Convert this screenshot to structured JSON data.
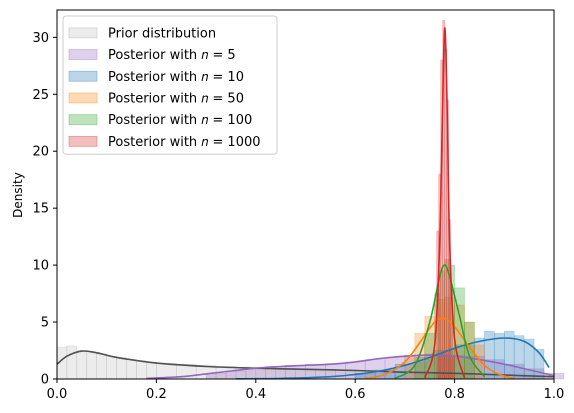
{
  "chart_data": {
    "type": "area",
    "title": "",
    "xlabel": "",
    "ylabel": "Density",
    "xlim": [
      0,
      1
    ],
    "ylim": [
      0,
      32.4
    ],
    "xticks": [
      "0.0",
      "0.2",
      "0.4",
      "0.6",
      "0.8",
      "1.0"
    ],
    "yticks": [
      "0",
      "5",
      "10",
      "15",
      "20",
      "25",
      "30"
    ],
    "grid": false,
    "legend_position": "top-left",
    "series": [
      {
        "name": "Prior distribution",
        "legend_text": "Prior distribution",
        "color": "#c8c8c8",
        "line_color": "#505050",
        "kde": [
          [
            0,
            1.3
          ],
          [
            0.02,
            2.0
          ],
          [
            0.05,
            2.45
          ],
          [
            0.08,
            2.3
          ],
          [
            0.12,
            1.9
          ],
          [
            0.2,
            1.4
          ],
          [
            0.3,
            1.1
          ],
          [
            0.4,
            0.95
          ],
          [
            0.5,
            0.85
          ],
          [
            0.6,
            0.75
          ],
          [
            0.7,
            0.6
          ],
          [
            0.8,
            0.5
          ],
          [
            0.9,
            0.35
          ],
          [
            1.0,
            0.2
          ]
        ],
        "hist": [
          [
            0,
            2.8
          ],
          [
            0.02,
            2.9
          ],
          [
            0.04,
            2.5
          ],
          [
            0.06,
            2.3
          ],
          [
            0.08,
            2.2
          ],
          [
            0.1,
            2.0
          ],
          [
            0.12,
            1.9
          ],
          [
            0.14,
            1.7
          ],
          [
            0.16,
            1.6
          ],
          [
            0.18,
            1.5
          ],
          [
            0.2,
            1.4
          ],
          [
            0.24,
            1.3
          ],
          [
            0.28,
            1.2
          ],
          [
            0.32,
            1.1
          ],
          [
            0.36,
            1.05
          ],
          [
            0.4,
            1.0
          ],
          [
            0.44,
            0.95
          ],
          [
            0.48,
            0.9
          ],
          [
            0.52,
            0.85
          ],
          [
            0.56,
            0.8
          ],
          [
            0.6,
            0.75
          ],
          [
            0.64,
            0.7
          ],
          [
            0.68,
            0.65
          ],
          [
            0.72,
            0.6
          ],
          [
            0.76,
            0.55
          ],
          [
            0.8,
            0.5
          ],
          [
            0.84,
            0.45
          ],
          [
            0.88,
            0.4
          ],
          [
            0.92,
            0.35
          ],
          [
            0.96,
            0.3
          ]
        ]
      },
      {
        "name": "Posterior with n = 5",
        "legend_text": "Posterior with 𝑛 = 5",
        "color": "#9467bd",
        "line_color": "#9467bd",
        "kde": [
          [
            0.18,
            0.05
          ],
          [
            0.25,
            0.2
          ],
          [
            0.3,
            0.45
          ],
          [
            0.35,
            0.7
          ],
          [
            0.4,
            0.95
          ],
          [
            0.45,
            1.1
          ],
          [
            0.5,
            1.2
          ],
          [
            0.55,
            1.3
          ],
          [
            0.6,
            1.5
          ],
          [
            0.65,
            1.8
          ],
          [
            0.7,
            2.0
          ],
          [
            0.75,
            2.1
          ],
          [
            0.8,
            2.0
          ],
          [
            0.85,
            1.7
          ],
          [
            0.9,
            1.3
          ],
          [
            0.95,
            0.8
          ],
          [
            1.0,
            0.3
          ]
        ],
        "hist": [
          [
            0.3,
            0.5
          ],
          [
            0.34,
            0.7
          ],
          [
            0.38,
            0.9
          ],
          [
            0.42,
            1.1
          ],
          [
            0.46,
            1.2
          ],
          [
            0.5,
            1.3
          ],
          [
            0.54,
            1.35
          ],
          [
            0.58,
            1.5
          ],
          [
            0.62,
            1.7
          ],
          [
            0.66,
            1.9
          ],
          [
            0.7,
            2.1
          ],
          [
            0.74,
            2.2
          ],
          [
            0.78,
            2.1
          ],
          [
            0.82,
            2.0
          ],
          [
            0.86,
            1.7
          ],
          [
            0.9,
            1.3
          ],
          [
            0.94,
            0.9
          ],
          [
            0.98,
            0.5
          ]
        ]
      },
      {
        "name": "Posterior with n = 10",
        "legend_text": "Posterior with 𝑛 = 10",
        "color": "#1f77b4",
        "line_color": "#1f77b4",
        "kde": [
          [
            0.36,
            0.02
          ],
          [
            0.45,
            0.05
          ],
          [
            0.55,
            0.2
          ],
          [
            0.6,
            0.4
          ],
          [
            0.65,
            0.7
          ],
          [
            0.7,
            1.2
          ],
          [
            0.75,
            1.9
          ],
          [
            0.8,
            2.7
          ],
          [
            0.85,
            3.3
          ],
          [
            0.9,
            3.6
          ],
          [
            0.94,
            3.3
          ],
          [
            0.97,
            2.3
          ],
          [
            0.99,
            1.0
          ]
        ],
        "hist": [
          [
            0.6,
            0.5
          ],
          [
            0.64,
            0.8
          ],
          [
            0.68,
            1.3
          ],
          [
            0.72,
            1.9
          ],
          [
            0.76,
            2.5
          ],
          [
            0.8,
            3.0
          ],
          [
            0.84,
            3.6
          ],
          [
            0.86,
            4.2
          ],
          [
            0.88,
            4.0
          ],
          [
            0.9,
            4.2
          ],
          [
            0.92,
            3.8
          ],
          [
            0.94,
            3.5
          ],
          [
            0.96,
            2.6
          ]
        ]
      },
      {
        "name": "Posterior with n = 50",
        "legend_text": "Posterior with 𝑛 = 50",
        "color": "#ff7f0e",
        "line_color": "#ff7f0e",
        "kde": [
          [
            0.62,
            0.05
          ],
          [
            0.66,
            0.4
          ],
          [
            0.7,
            1.5
          ],
          [
            0.73,
            3.2
          ],
          [
            0.76,
            5.0
          ],
          [
            0.78,
            5.3
          ],
          [
            0.8,
            4.6
          ],
          [
            0.83,
            2.8
          ],
          [
            0.86,
            1.2
          ],
          [
            0.89,
            0.4
          ],
          [
            0.92,
            0.05
          ]
        ],
        "hist": [
          [
            0.7,
            2.0
          ],
          [
            0.72,
            4.0
          ],
          [
            0.74,
            5.5
          ],
          [
            0.76,
            7.0
          ],
          [
            0.78,
            7.2
          ],
          [
            0.8,
            6.5
          ],
          [
            0.82,
            5.0
          ],
          [
            0.84,
            3.0
          ]
        ]
      },
      {
        "name": "Posterior with n = 100",
        "legend_text": "Posterior with 𝑛 = 100",
        "color": "#2ca02c",
        "line_color": "#2ca02c",
        "kde": [
          [
            0.68,
            0.05
          ],
          [
            0.72,
            1.2
          ],
          [
            0.75,
            5.0
          ],
          [
            0.77,
            9.0
          ],
          [
            0.78,
            10.0
          ],
          [
            0.79,
            9.0
          ],
          [
            0.81,
            5.5
          ],
          [
            0.83,
            2.0
          ],
          [
            0.86,
            0.2
          ]
        ],
        "hist": [
          [
            0.72,
            1.5
          ],
          [
            0.74,
            4.0
          ],
          [
            0.76,
            7.5
          ],
          [
            0.77,
            9.5
          ],
          [
            0.78,
            10.5
          ],
          [
            0.79,
            10.0
          ],
          [
            0.8,
            8.0
          ],
          [
            0.82,
            5.0
          ]
        ]
      },
      {
        "name": "Posterior with n = 1000",
        "legend_text": "Posterior with 𝑛 = 1000",
        "color": "#d62728",
        "line_color": "#d62728",
        "kde": [
          [
            0.74,
            0.1
          ],
          [
            0.76,
            3.0
          ],
          [
            0.77,
            12.0
          ],
          [
            0.775,
            22.0
          ],
          [
            0.78,
            30.8
          ],
          [
            0.785,
            24.0
          ],
          [
            0.79,
            12.0
          ],
          [
            0.8,
            3.5
          ],
          [
            0.82,
            0.1
          ]
        ],
        "hist": [
          [
            0.764,
            13.0
          ],
          [
            0.768,
            18.0
          ],
          [
            0.772,
            28.0
          ],
          [
            0.776,
            31.5
          ],
          [
            0.78,
            29.0
          ],
          [
            0.784,
            24.5
          ],
          [
            0.788,
            14.0
          ],
          [
            0.792,
            8.0
          ],
          [
            0.796,
            2.0
          ]
        ]
      }
    ]
  }
}
